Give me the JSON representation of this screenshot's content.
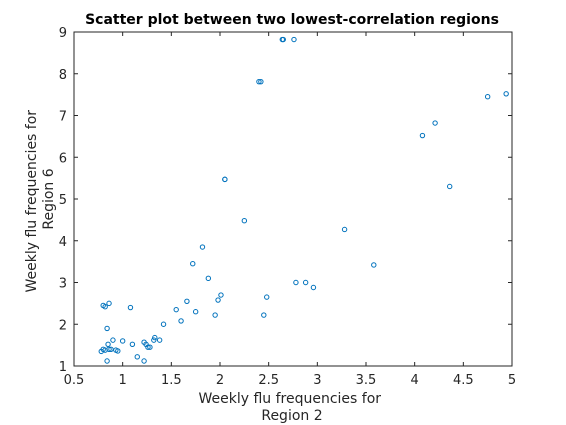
{
  "chart_data": {
    "type": "scatter",
    "title": "Scatter plot between two lowest-correlation regions",
    "xlabel": [
      "Weekly flu frequencies for",
      "Region 2"
    ],
    "ylabel": [
      "Weekly flu frequencies for",
      "Region 6"
    ],
    "xlim": [
      0.5,
      5
    ],
    "ylim": [
      1,
      9
    ],
    "xticks": [
      0.5,
      1,
      1.5,
      2,
      2.5,
      3,
      3.5,
      4,
      4.5,
      5
    ],
    "xtick_labels": [
      "0.5",
      "1",
      "1.5",
      "2",
      "2.5",
      "3",
      "3.5",
      "4",
      "4.5",
      "5"
    ],
    "yticks": [
      1,
      2,
      3,
      4,
      5,
      6,
      7,
      8,
      9
    ],
    "ytick_labels": [
      "1",
      "2",
      "3",
      "4",
      "5",
      "6",
      "7",
      "8",
      "9"
    ],
    "grid": false,
    "marker": "circle-open",
    "color": "#0072BD",
    "series": [
      {
        "x": [
          0.78,
          0.8,
          0.82,
          0.84,
          0.85,
          0.86,
          0.88,
          0.9,
          0.93,
          0.95,
          1.0,
          1.08,
          1.1,
          1.15,
          1.22,
          1.22,
          1.24,
          1.26,
          1.28,
          1.32,
          1.33,
          1.38,
          1.42,
          0.8,
          0.82,
          0.86,
          0.84,
          1.55,
          1.6,
          1.66,
          1.72,
          1.75,
          1.82,
          1.88,
          1.95,
          1.98,
          2.01,
          2.05,
          2.25,
          2.4,
          2.45,
          2.48,
          2.65,
          2.78,
          2.88,
          2.96,
          2.05,
          2.42,
          2.64,
          2.76,
          3.28,
          3.58,
          4.08,
          4.21,
          4.36,
          4.75,
          4.94
        ],
        "y": [
          1.35,
          1.4,
          1.38,
          1.12,
          1.52,
          1.4,
          1.4,
          1.62,
          1.38,
          1.36,
          1.6,
          2.4,
          1.52,
          1.22,
          1.12,
          1.57,
          1.52,
          1.45,
          1.45,
          1.62,
          1.68,
          1.62,
          2.0,
          2.45,
          2.42,
          2.5,
          1.9,
          2.35,
          2.08,
          2.55,
          3.45,
          2.3,
          3.85,
          3.1,
          2.22,
          2.58,
          2.7,
          5.47,
          4.48,
          7.81,
          2.22,
          2.65,
          8.82,
          3.0,
          3.0,
          2.88,
          5.47,
          7.81,
          8.82,
          8.82,
          4.27,
          3.42,
          6.52,
          6.82,
          5.3,
          7.45,
          7.52
        ]
      }
    ]
  }
}
